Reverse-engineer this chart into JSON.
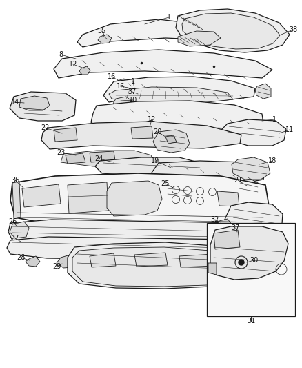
{
  "bg_color": "#ffffff",
  "fig_width": 4.38,
  "fig_height": 5.33,
  "dpi": 100,
  "line_color": "#1a1a1a",
  "label_color": "#111111",
  "label_fontsize": 7.0
}
